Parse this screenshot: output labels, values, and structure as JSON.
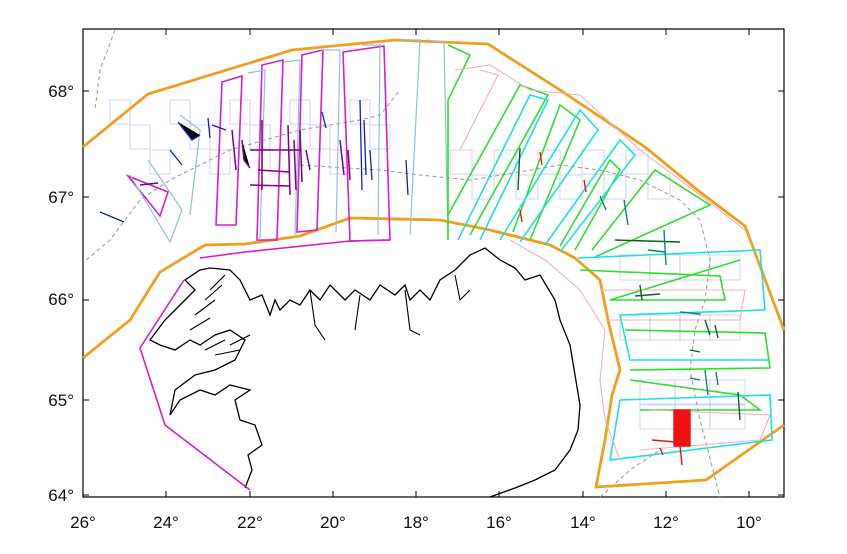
{
  "map": {
    "x_axis": {
      "ticks": [
        "26°",
        "24°",
        "22°",
        "20°",
        "18°",
        "16°",
        "14°",
        "12°",
        "10°"
      ]
    },
    "y_axis": {
      "ticks": [
        "68°",
        "67°",
        "66°",
        "65°",
        "64°"
      ]
    },
    "colors": {
      "boundary": "#f0a020",
      "coast": "#000000",
      "transect_magenta": "#d020d0",
      "transect_lightblue": "#90c0e0",
      "transect_green": "#30dd30",
      "transect_cyan": "#20e0e0",
      "transect_pink": "#f0b0c0",
      "grid_cells": "#c8c8f0",
      "signal_blue": "#1020c0",
      "signal_purple": "#800080",
      "signal_darkgreen": "#106020",
      "signal_teal": "#108080",
      "signal_red": "#ee1111"
    }
  }
}
